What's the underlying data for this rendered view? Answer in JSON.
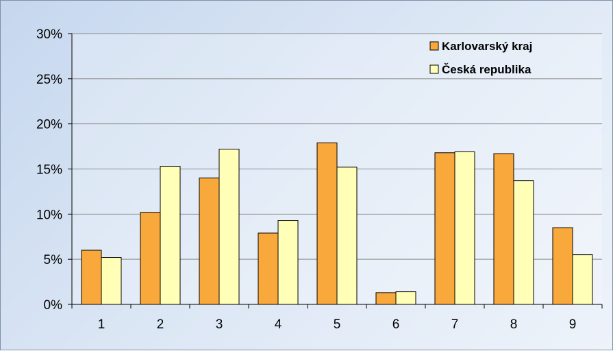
{
  "chart_data": {
    "type": "bar",
    "title": "",
    "xlabel": "",
    "ylabel": "",
    "categories": [
      "1",
      "2",
      "3",
      "4",
      "5",
      "6",
      "7",
      "8",
      "9"
    ],
    "series": [
      {
        "name": "Karlovarský kraj",
        "color": "#f9a83c",
        "values": [
          6.0,
          10.2,
          14.0,
          7.9,
          17.9,
          1.3,
          16.8,
          16.7,
          8.5
        ]
      },
      {
        "name": "Česká republika",
        "color": "#ffffb8",
        "values": [
          5.2,
          15.3,
          17.2,
          9.3,
          15.2,
          1.4,
          16.9,
          13.7,
          5.5
        ]
      }
    ],
    "ylim": [
      0,
      30
    ],
    "yticks": [
      "0%",
      "5%",
      "10%",
      "15%",
      "20%",
      "25%",
      "30%"
    ],
    "grid": true,
    "legend_position": "top-right"
  }
}
